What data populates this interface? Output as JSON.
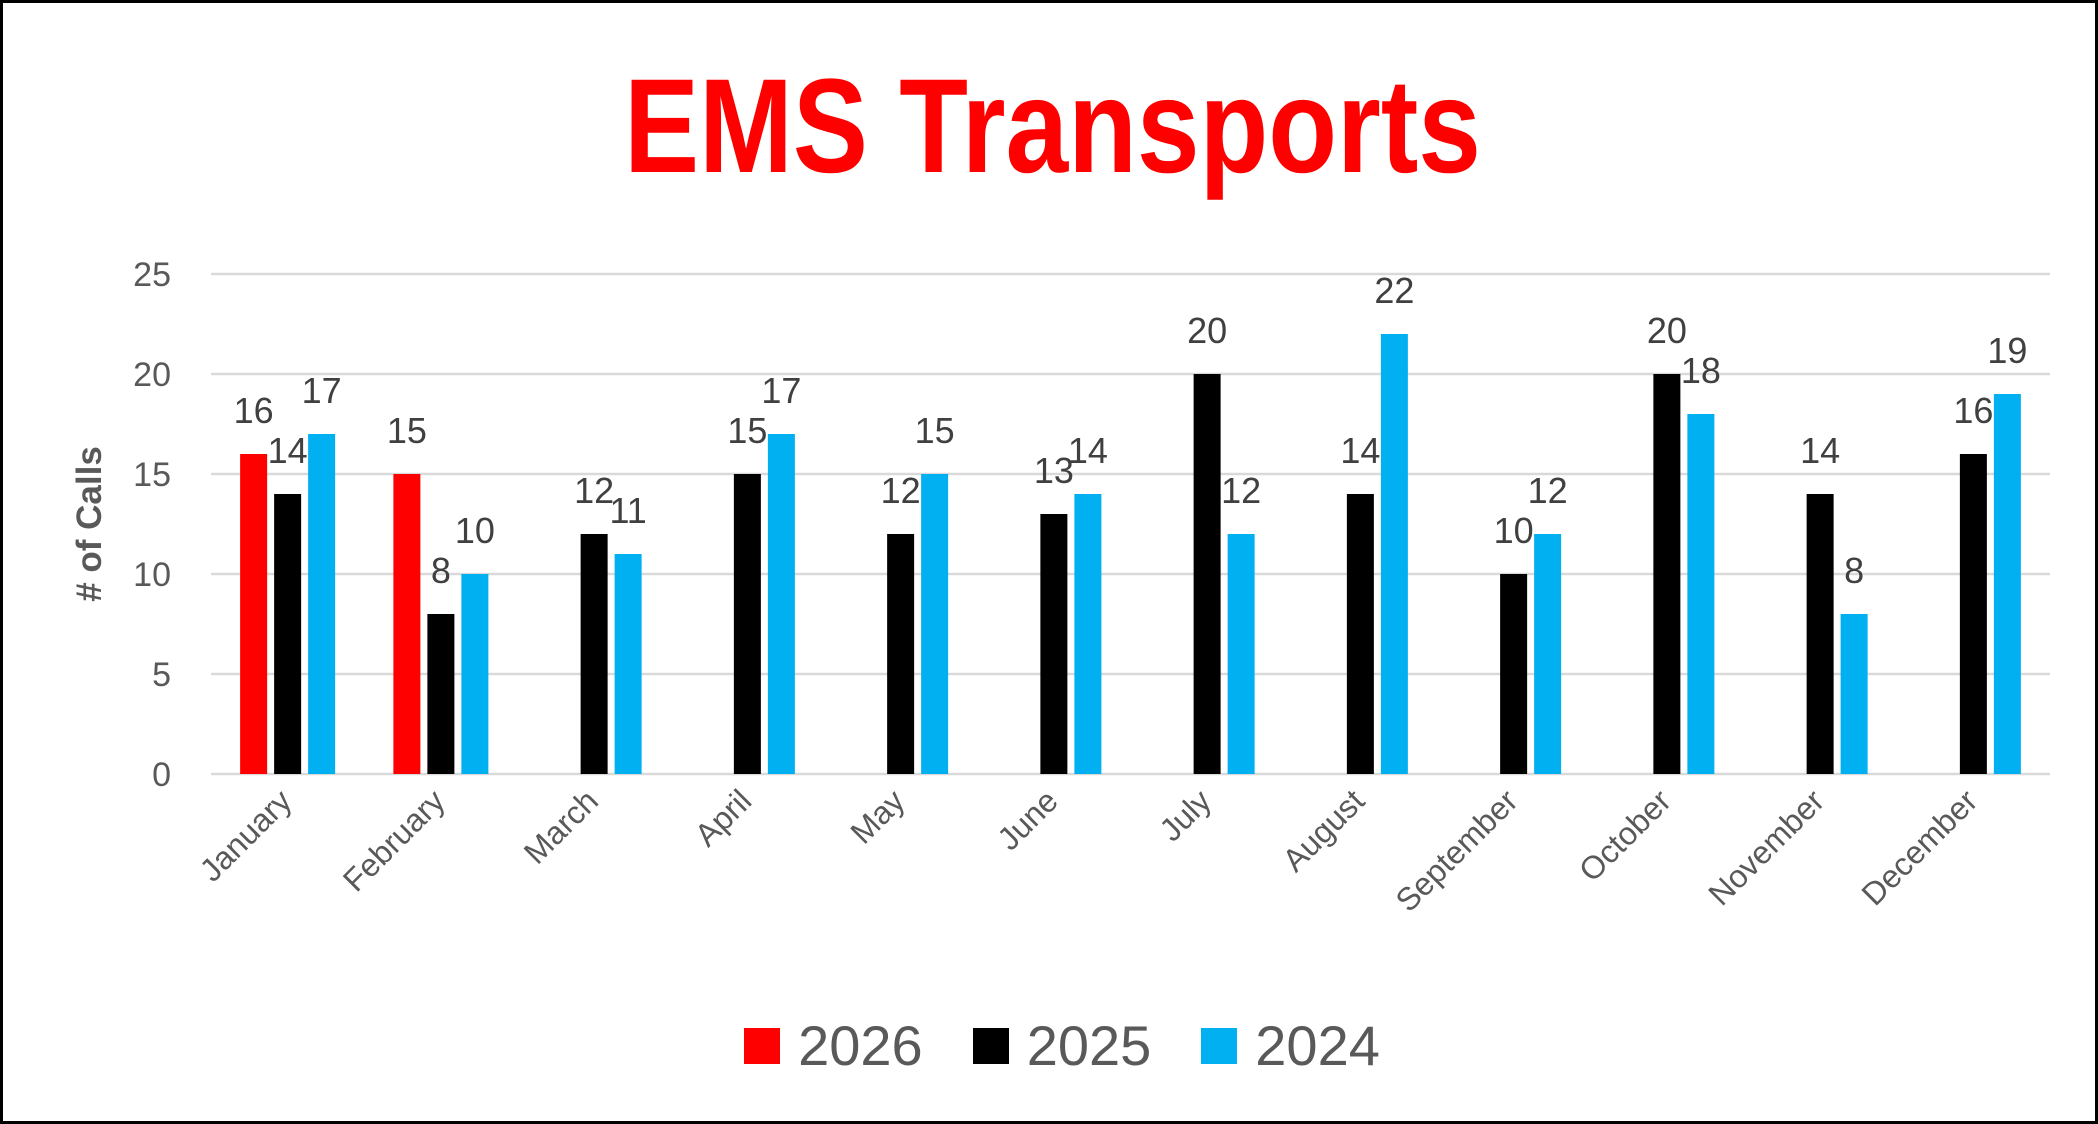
{
  "chart_data": {
    "type": "bar",
    "title": "EMS Transports",
    "xlabel": "",
    "ylabel": "# of Calls",
    "ylim": [
      0,
      25
    ],
    "yticks": [
      0,
      5,
      10,
      15,
      20,
      25
    ],
    "grid": true,
    "legend_position": "bottom",
    "categories": [
      "January",
      "February",
      "March",
      "April",
      "May",
      "June",
      "July",
      "August",
      "September",
      "October",
      "November",
      "December"
    ],
    "series": [
      {
        "name": "2026",
        "color": "#ff0000",
        "values": [
          16,
          15,
          null,
          null,
          null,
          null,
          null,
          null,
          null,
          null,
          null,
          null
        ]
      },
      {
        "name": "2025",
        "color": "#000000",
        "values": [
          14,
          8,
          12,
          15,
          12,
          13,
          20,
          14,
          10,
          20,
          14,
          16
        ]
      },
      {
        "name": "2024",
        "color": "#00b0f0",
        "values": [
          17,
          10,
          11,
          17,
          15,
          14,
          12,
          22,
          12,
          18,
          8,
          19
        ]
      }
    ]
  }
}
